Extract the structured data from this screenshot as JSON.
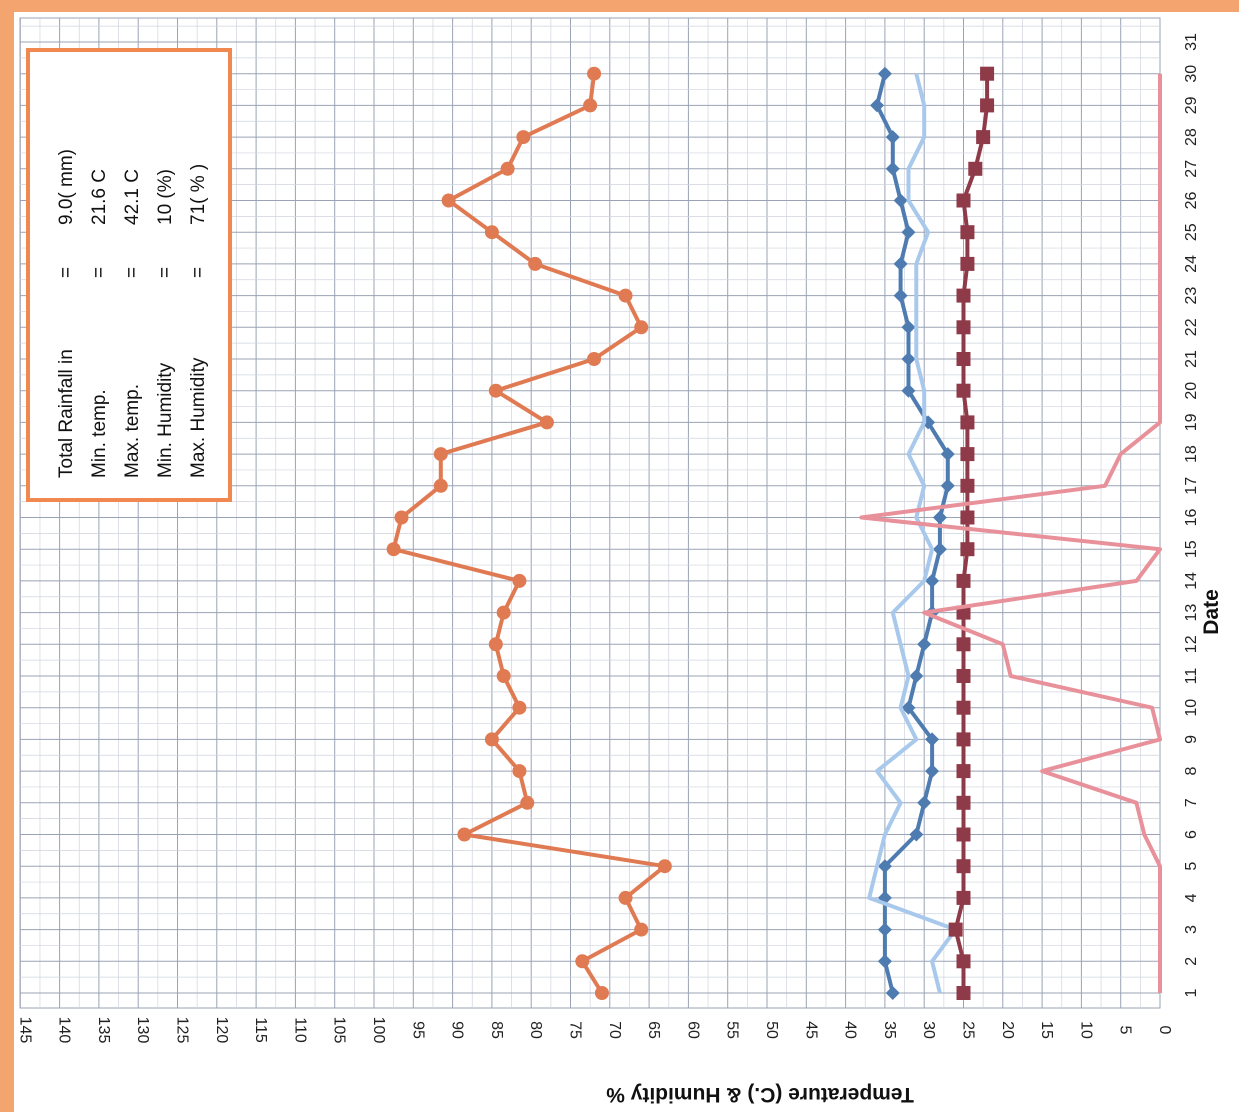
{
  "chart_data": {
    "type": "line",
    "orientation": "rotated-90",
    "xlabel": "Date",
    "ylabel": "Temperature (C.) & Humidity %",
    "x": [
      1,
      2,
      3,
      4,
      5,
      6,
      7,
      8,
      9,
      10,
      11,
      12,
      13,
      14,
      15,
      16,
      17,
      18,
      19,
      20,
      21,
      22,
      23,
      24,
      25,
      26,
      27,
      28,
      29,
      30
    ],
    "x_ticks": [
      "1",
      "2",
      "3",
      "4",
      "5",
      "6",
      "7",
      "8",
      "9",
      "10",
      "11",
      "12",
      "13",
      "14",
      "15",
      "16",
      "17",
      "18",
      "19",
      "20",
      "21",
      "22",
      "23",
      "24",
      "25",
      "26",
      "27",
      "28",
      "29",
      "30",
      "31"
    ],
    "xlim": [
      0.5,
      31
    ],
    "ylim": [
      0,
      145
    ],
    "y_ticks": [
      "0",
      "5",
      "10",
      "15",
      "20",
      "25",
      "30",
      "35",
      "40",
      "45",
      "50",
      "55",
      "60",
      "65",
      "70",
      "75",
      "80",
      "85",
      "90",
      "95",
      "100",
      "105",
      "110",
      "115",
      "120",
      "125",
      "130",
      "135",
      "140",
      "145"
    ],
    "grid": true,
    "series": [
      {
        "color": "#e07a52",
        "marker": "circle",
        "values": [
          71,
          73.5,
          66,
          68,
          63,
          88.5,
          80.5,
          81.5,
          85,
          81.5,
          83.5,
          84.5,
          83.5,
          81.5,
          97.5,
          96.5,
          91.5,
          91.5,
          78,
          84.5,
          72,
          66,
          68,
          79.5,
          85,
          90.5,
          83,
          81,
          72.5,
          72
        ]
      },
      {
        "color": "#4f7cb0",
        "marker": "diamond",
        "values": [
          34,
          35,
          35,
          35,
          35,
          31,
          30,
          29,
          29,
          32,
          31,
          30,
          29,
          29,
          28,
          28,
          27,
          27,
          29.5,
          32,
          32,
          32,
          33,
          33,
          32,
          33,
          34,
          34,
          36,
          35
        ]
      },
      {
        "color": "#a8c8ec",
        "marker": "none",
        "values": [
          28,
          29,
          26,
          37,
          36,
          35,
          33,
          36,
          31,
          33,
          32,
          33,
          34,
          30,
          29,
          31,
          30,
          32,
          30,
          30,
          31,
          31,
          31,
          31,
          29.5,
          32,
          32,
          30,
          30,
          31
        ]
      },
      {
        "color": "#8f3a48",
        "marker": "square",
        "values": [
          25,
          25,
          26,
          25,
          25,
          25,
          25,
          25,
          25,
          25,
          25,
          25,
          25,
          25,
          24.5,
          24.5,
          24.5,
          24.5,
          24.5,
          25,
          25,
          25,
          25,
          24.5,
          24.5,
          25,
          23.5,
          22.5,
          22,
          22
        ]
      },
      {
        "color": "#e8919a",
        "marker": "none",
        "values": [
          0,
          0,
          0,
          0,
          0,
          2,
          3,
          15,
          0,
          1,
          19,
          20,
          30,
          3,
          0,
          38,
          7,
          5,
          0,
          0,
          0,
          0,
          0,
          0,
          0,
          0,
          0,
          0,
          0,
          0
        ]
      }
    ]
  },
  "summary_box": {
    "rows": [
      {
        "label": "Total Rainfall in",
        "sep": "=",
        "value": "9.0( mm)"
      },
      {
        "label": "Min. temp.",
        "sep": "=",
        "value": "21.6 C"
      },
      {
        "label": "Max. temp.",
        "sep": "=",
        "value": "42.1 C"
      },
      {
        "label": "Min. Humidity",
        "sep": "=",
        "value": "10 (%)"
      },
      {
        "label": "Max. Humidity",
        "sep": "=",
        "value": "71( % )"
      }
    ],
    "border_color": "#f0884f"
  }
}
